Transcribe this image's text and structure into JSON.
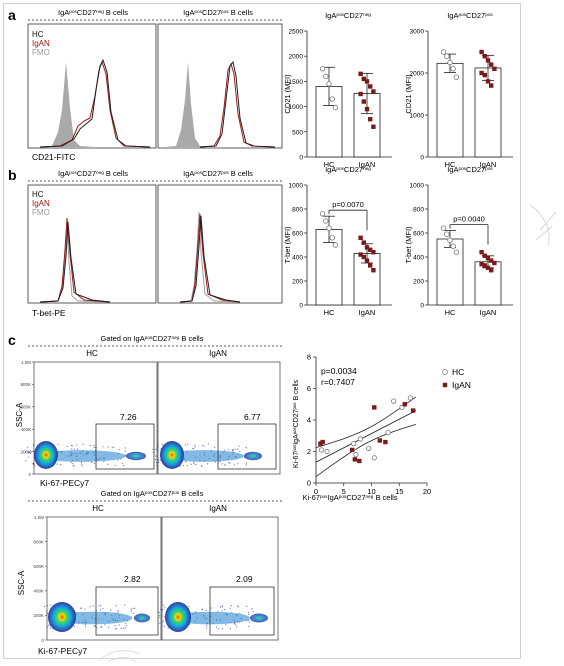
{
  "panels": {
    "a": {
      "letter": "a"
    },
    "b": {
      "letter": "b"
    },
    "c": {
      "letter": "c"
    }
  },
  "legend_hc": "HC",
  "legend_igan": "IgAN",
  "legend_fmo": "FMO",
  "row_a": {
    "hist_left_title": "IgA<sup>pos</sup>CD27<sup>neg</sup> B cells",
    "hist_right_title": "IgA<sup>pos</sup>CD27<sup>pos</sup> B cells",
    "hist_xlabel": "CD21-FITC",
    "bar_left_title": "IgA<sup>pos</sup>CD27<sup>neg</sup>",
    "bar_right_title": "IgA<sup>pos</sup>CD27<sup>pos</sup>"
  },
  "row_b": {
    "hist_left_title": "IgA<sup>pos</sup>CD27<sup>neg</sup> B cells",
    "hist_right_title": "IgA<sup>pos</sup>CD27<sup>pos</sup> B cells",
    "hist_xlabel": "T-bet-PE",
    "bar_left_title": "IgA<sup>pos</sup>CD27<sup>neg</sup>",
    "bar_right_title": "IgA<sup>pos</sup>CD27<sup>pos</sup>"
  },
  "row_c": {
    "gate1": "Gated on IgA<sup>pos</sup>CD27<sup>neg</sup> B cells",
    "gate2": "Gated on IgA<sup>pos</sup>CD27<sup>pos</sup> B cells",
    "col_hc": "HC",
    "col_igan": "IgAN",
    "ssc": "SSC-A",
    "ki67": "Ki-67-PECy7",
    "yticks": [
      "1.0M",
      "800K",
      "600K",
      "400K",
      "200K",
      "0"
    ],
    "pct_top": [
      "7.26",
      "6.77"
    ],
    "pct_bottom": [
      "2.82",
      "2.09"
    ]
  },
  "scatter": {
    "p": "p=0.0034",
    "r": "r=0.7407",
    "xlabel": "Ki-67<sup>pos</sup>IgA<sup>pos</sup>CD27<sup>neg</sup> B cells",
    "ylabel": "Ki-67<sup>pos</sup>IgA<sup>pos</sup>CD27<sup>pos</sup> B cells"
  },
  "chart_data": [
    {
      "type": "bar",
      "title": "IgAposCD27neg",
      "ylabel": "CD21 (MFI)",
      "categories": [
        "HC",
        "IgAN"
      ],
      "values": [
        1400,
        1260
      ],
      "errors": [
        380,
        400
      ],
      "ylim": [
        0,
        2500
      ],
      "yticks": [
        0,
        500,
        1000,
        1500,
        2000,
        2500
      ],
      "points": {
        "HC": [
          1750,
          1600,
          1450,
          1150,
          980
        ],
        "IgAN": [
          1650,
          1550,
          1500,
          1400,
          1300,
          1250,
          1100,
          950,
          750,
          600
        ]
      }
    },
    {
      "type": "bar",
      "title": "IgAposCD27pos",
      "ylabel": "CD21 (MFI)",
      "categories": [
        "HC",
        "IgAN"
      ],
      "values": [
        2230,
        2120
      ],
      "errors": [
        220,
        300
      ],
      "ylim": [
        0,
        3000
      ],
      "yticks": [
        0,
        1000,
        2000,
        3000
      ],
      "points": {
        "HC": [
          2500,
          2400,
          2250,
          2100,
          1900
        ],
        "IgAN": [
          2500,
          2400,
          2300,
          2200,
          2100,
          2000,
          1950,
          1800,
          1700
        ]
      }
    },
    {
      "type": "bar",
      "title": "IgAposCD27neg",
      "ylabel": "T-bet (MFI)",
      "categories": [
        "HC",
        "IgAN"
      ],
      "values": [
        630,
        430
      ],
      "errors": [
        110,
        80
      ],
      "ylim": [
        0,
        1000
      ],
      "yticks": [
        0,
        200,
        400,
        600,
        800,
        1000
      ],
      "significance": "p=0.0070",
      "points": {
        "HC": [
          760,
          700,
          640,
          560,
          500
        ],
        "IgAN": [
          560,
          520,
          480,
          460,
          440,
          420,
          400,
          370,
          330,
          290
        ]
      }
    },
    {
      "type": "bar",
      "title": "IgAposCD27pos",
      "ylabel": "T-bet (MFI)",
      "categories": [
        "HC",
        "IgAN"
      ],
      "values": [
        550,
        360
      ],
      "errors": [
        70,
        50
      ],
      "ylim": [
        0,
        1000
      ],
      "yticks": [
        0,
        200,
        400,
        600,
        800,
        1000
      ],
      "significance": "p=0.0040",
      "points": {
        "HC": [
          640,
          590,
          540,
          490,
          440
        ],
        "IgAN": [
          440,
          410,
          390,
          370,
          350,
          340,
          330,
          310,
          290
        ]
      }
    },
    {
      "type": "scatter",
      "xlim": [
        0,
        20
      ],
      "ylim": [
        0,
        8
      ],
      "xticks": [
        0,
        5,
        10,
        15,
        20
      ],
      "yticks": [
        0,
        2,
        4,
        6,
        8
      ],
      "series": [
        {
          "name": "HC",
          "x": [
            1.0,
            2.0,
            6.8,
            7.2,
            8.0,
            9.5,
            10.5,
            13.0,
            14.0,
            15.5,
            17.0
          ],
          "y": [
            2.1,
            2.0,
            2.5,
            1.8,
            2.8,
            2.2,
            1.6,
            3.2,
            5.2,
            4.8,
            5.4
          ]
        },
        {
          "name": "IgAN",
          "x": [
            0.8,
            1.2,
            6.5,
            7.0,
            7.8,
            10.5,
            11.5,
            12.5,
            16.0,
            17.5
          ],
          "y": [
            2.5,
            2.6,
            2.1,
            1.5,
            1.4,
            4.8,
            2.7,
            2.6,
            5.0,
            4.6
          ]
        }
      ]
    }
  ]
}
